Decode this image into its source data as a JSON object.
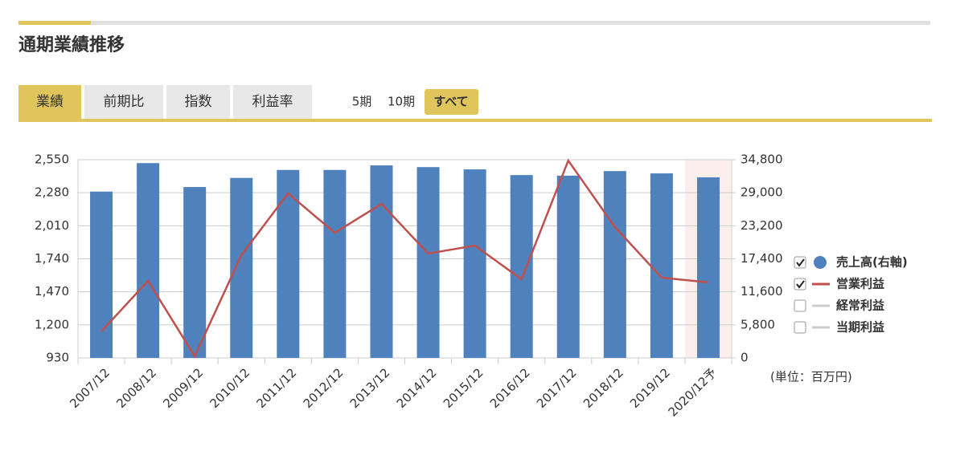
{
  "header": {
    "title": "通期業績推移"
  },
  "tabs": [
    "業績",
    "前期比",
    "指数",
    "利益率"
  ],
  "periods": [
    "5期",
    "10期",
    "すべて"
  ],
  "unit_note": "(単位：百万円)",
  "hidden_series": [
    "経常利益",
    "当期利益"
  ],
  "chart_data": {
    "type": "combo",
    "categories": [
      "2007/12",
      "2008/12",
      "2009/12",
      "2010/12",
      "2011/12",
      "2012/12",
      "2013/12",
      "2014/12",
      "2015/12",
      "2016/12",
      "2017/12",
      "2018/12",
      "2019/12",
      "2020/12予"
    ],
    "series": [
      {
        "name": "売上高(右軸)",
        "type": "bar",
        "axis": "y2",
        "color": "#4f81bd",
        "values": [
          29200,
          34200,
          30000,
          31600,
          33000,
          33000,
          33800,
          33500,
          33100,
          32100,
          32000,
          32800,
          32400,
          31700
        ]
      },
      {
        "name": "営業利益",
        "type": "line",
        "axis": "y",
        "color": "#c0504d",
        "values": [
          1146,
          1560,
          943,
          1770,
          2275,
          1953,
          2189,
          1783,
          1848,
          1573,
          2543,
          1999,
          1586,
          1547
        ]
      }
    ],
    "ylim": [
      930,
      2550
    ],
    "yticks": [
      930,
      {
        "value": 1200,
        "label": "1,200"
      },
      {
        "value": 1470,
        "label": "1,470"
      },
      {
        "value": 1740,
        "label": "1,740"
      },
      {
        "value": 2010,
        "label": "2,010"
      },
      {
        "value": 2280,
        "label": "2,280"
      },
      {
        "value": 2550,
        "label": "2,550"
      }
    ],
    "y2lim": [
      0,
      34800
    ],
    "y2ticks": [
      0,
      {
        "value": 5800,
        "label": "5,800"
      },
      {
        "value": 11600,
        "label": "11,600"
      },
      {
        "value": 17400,
        "label": "17,400"
      },
      {
        "value": 23200,
        "label": "23,200"
      },
      {
        "value": 29000,
        "label": "29,000"
      },
      {
        "value": 34800,
        "label": "34,800"
      }
    ],
    "grid": true
  }
}
